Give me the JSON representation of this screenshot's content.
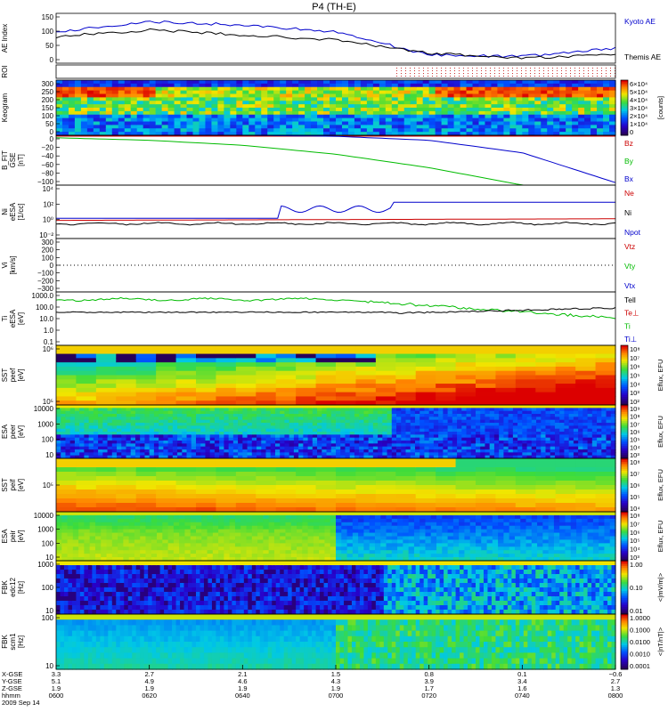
{
  "title": "P4 (TH-E)",
  "date": "2009 Sep 14",
  "colors": {
    "kyoto": "#0000cc",
    "themis": "#000000",
    "bz": "#cc0000",
    "by": "#00bb00",
    "bx": "#0000cc",
    "ne": "#cc0000",
    "ni": "#000000",
    "npot": "#0000cc",
    "vtz": "#cc0000",
    "vty": "#00bb00",
    "vtx": "#0000cc",
    "tell": "#000000",
    "teperp": "#cc0000",
    "tiperp": "#0000cc",
    "ti": "#00bb00"
  },
  "panels": [
    {
      "key": "ae",
      "ylabel": [
        "AE Index"
      ],
      "yticks": [
        "150",
        "100",
        "50",
        "0"
      ],
      "legend": [
        "Kyoto AE",
        "Themis AE"
      ],
      "legend_colors": [
        "kyoto",
        "themis"
      ]
    },
    {
      "key": "roi",
      "ylabel": [
        "ROI"
      ],
      "yticks": [],
      "legend": []
    },
    {
      "key": "keogram",
      "ylabel": [
        "Keogram"
      ],
      "yticks": [
        "300",
        "250",
        "200",
        "150",
        "100",
        "50",
        "0"
      ],
      "legend": [],
      "colorbar": [
        "6×10⁴",
        "5×10⁴",
        "4×10⁴",
        "3×10⁴",
        "2×10⁴",
        "1×10⁴",
        "0"
      ],
      "colorbar_label": "[counts]"
    },
    {
      "key": "bfit",
      "ylabel": [
        "B_FIT",
        "GSE",
        "[nT]"
      ],
      "yticks": [
        "0",
        "−20",
        "−40",
        "−60",
        "−80",
        "−100"
      ],
      "legend": [
        "Bz",
        "By",
        "Bx"
      ],
      "legend_colors": [
        "bz",
        "by",
        "bx"
      ]
    },
    {
      "key": "ni",
      "ylabel": [
        "Ni",
        "eESA",
        "[1/cc]"
      ],
      "yticks": [
        "10⁴",
        "10²",
        "10⁰",
        "10⁻²"
      ],
      "legend": [
        "Ne",
        "Ni",
        "Npot"
      ],
      "legend_colors": [
        "ne",
        "ni",
        "npot"
      ]
    },
    {
      "key": "vi",
      "ylabel": [
        "Vi",
        "[km/s]"
      ],
      "yticks": [
        "300",
        "200",
        "100",
        "0",
        "−100",
        "−200",
        "−300"
      ],
      "legend": [
        "Vtz",
        "Vty",
        "Vtx"
      ],
      "legend_colors": [
        "vtz",
        "vty",
        "vtx"
      ]
    },
    {
      "key": "ti",
      "ylabel": [
        "Ti",
        "eESA",
        "[eV]"
      ],
      "yticks": [
        "1000.0",
        "100.0",
        "10.0",
        "1.0",
        "0.1"
      ],
      "legend": [
        "Tell",
        "Te⊥",
        "Ti",
        "Ti⊥"
      ],
      "legend_colors": [
        "tell",
        "teperp",
        "ti",
        "tiperp"
      ]
    },
    {
      "key": "sst_e",
      "ylabel": [
        "SST",
        "peef",
        "[eV]"
      ],
      "yticks": [
        "10⁶",
        "10⁵"
      ],
      "legend": [],
      "colorbar": [
        "10⁸",
        "10⁷",
        "10⁶",
        "10⁵",
        "10⁴",
        "10³",
        "10²"
      ],
      "colorbar_label": "Eflux, EFU"
    },
    {
      "key": "esa_e",
      "ylabel": [
        "ESA",
        "peer",
        "[eV]"
      ],
      "yticks": [
        "10000",
        "1000",
        "100",
        "10"
      ],
      "legend": [],
      "colorbar": [
        "10⁹",
        "10⁸",
        "10⁷",
        "10⁶",
        "10⁵",
        "10⁴",
        "10³"
      ],
      "colorbar_label": "Eflux, EFU"
    },
    {
      "key": "sst_i",
      "ylabel": [
        "SST",
        "peif",
        "[eV]"
      ],
      "yticks": [
        "10⁵"
      ],
      "legend": [],
      "colorbar": [
        "10⁸",
        "10⁷",
        "10⁶",
        "10⁵",
        "10⁴"
      ],
      "colorbar_label": "Eflux, EFU"
    },
    {
      "key": "esa_i",
      "ylabel": [
        "ESA",
        "peir",
        "[eV]"
      ],
      "yticks": [
        "10000",
        "1000",
        "100",
        "10"
      ],
      "legend": [],
      "colorbar": [
        "10⁸",
        "10⁷",
        "10⁶",
        "10⁵",
        "10⁴",
        "10³"
      ],
      "colorbar_label": "Eflux, EFU"
    },
    {
      "key": "fbk_edc",
      "ylabel": [
        "FBK",
        "edc12",
        "[Hz]"
      ],
      "yticks": [
        "1000",
        "100",
        "10"
      ],
      "legend": [],
      "colorbar": [
        "1.00",
        "0.10",
        "0.01"
      ],
      "colorbar_label": "<|mV/m|>"
    },
    {
      "key": "fbk_scm",
      "ylabel": [
        "FBK",
        "scm1",
        "[Hz]"
      ],
      "yticks": [
        "100",
        "10"
      ],
      "legend": [],
      "colorbar": [
        "1.0000",
        "0.1000",
        "0.0100",
        "0.0010",
        "0.0001"
      ],
      "colorbar_label": "<|nT/nT|>"
    }
  ],
  "ephemeris": {
    "labels": [
      "X-GSE",
      "Y-GSE",
      "Z-GSE",
      "hhmm"
    ],
    "columns": [
      [
        "3.3",
        "5.1",
        "1.9",
        "0600"
      ],
      [
        "2.7",
        "4.9",
        "1.9",
        "0620"
      ],
      [
        "2.1",
        "4.6",
        "1.9",
        "0640"
      ],
      [
        "1.5",
        "4.3",
        "1.9",
        "0700"
      ],
      [
        "0.8",
        "3.9",
        "1.7",
        "0720"
      ],
      [
        "0.1",
        "3.4",
        "1.6",
        "0740"
      ],
      [
        "−0.6",
        "2.7",
        "1.3",
        "0800"
      ]
    ]
  },
  "chart_data": {
    "type": "line",
    "title": "P4 (TH-E)",
    "x": [
      "0600",
      "0620",
      "0640",
      "0700",
      "0720",
      "0740",
      "0800"
    ],
    "ylabel": "AE Index",
    "ylim": [
      0,
      150
    ],
    "series": [
      {
        "name": "Kyoto AE",
        "values": [
          95,
          125,
          115,
          95,
          25,
          20,
          45
        ]
      },
      {
        "name": "Themis AE",
        "values": [
          80,
          100,
          85,
          70,
          30,
          15,
          25
        ]
      }
    ],
    "b_fit": {
      "ylim": [
        -100,
        0
      ],
      "series": [
        {
          "name": "Bx",
          "values": [
            0,
            0,
            0,
            -2,
            -10,
            -35,
            -95
          ]
        },
        {
          "name": "By",
          "values": [
            -5,
            -10,
            -20,
            -38,
            -65,
            -100,
            -100
          ]
        }
      ]
    }
  }
}
